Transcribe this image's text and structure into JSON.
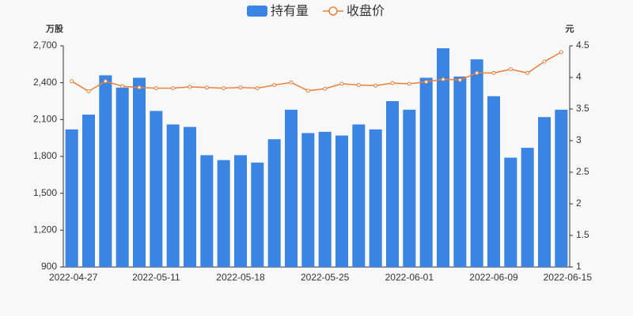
{
  "chart_data": {
    "type": "bar",
    "legend": "top",
    "y_unit": "万股",
    "y2_unit": "元",
    "categories": [
      "2022-04-27",
      null,
      null,
      null,
      null,
      "2022-05-11",
      null,
      null,
      null,
      null,
      "2022-05-18",
      null,
      null,
      null,
      null,
      "2022-05-25",
      null,
      null,
      null,
      null,
      "2022-06-01",
      null,
      null,
      null,
      null,
      "2022-06-09",
      null,
      null,
      null,
      "2022-06-15"
    ],
    "series": [
      {
        "name": "持有量",
        "type": "bar",
        "color": "#3a84e3",
        "values": [
          2020,
          2140,
          2460,
          2360,
          2440,
          2170,
          2060,
          2040,
          1810,
          1770,
          1810,
          1750,
          1940,
          2180,
          1990,
          2000,
          1970,
          2060,
          2020,
          2250,
          2180,
          2440,
          2680,
          2450,
          2590,
          2290,
          1790,
          1870,
          2120,
          2180
        ]
      },
      {
        "name": "收盘价",
        "type": "line",
        "axis": "y2",
        "color": "#e8803a",
        "values": [
          3.94,
          3.78,
          3.94,
          3.86,
          3.84,
          3.83,
          3.83,
          3.85,
          3.84,
          3.83,
          3.84,
          3.83,
          3.88,
          3.92,
          3.79,
          3.82,
          3.9,
          3.88,
          3.87,
          3.91,
          3.9,
          3.93,
          3.97,
          3.96,
          4.07,
          4.07,
          4.13,
          4.07,
          4.25,
          4.4
        ]
      }
    ],
    "ylim": [
      900,
      2700
    ],
    "yticks": [
      {
        "value": 900,
        "label": "900"
      },
      {
        "value": 1200,
        "label": "1,200"
      },
      {
        "value": 1500,
        "label": "1,500"
      },
      {
        "value": 1800,
        "label": "1,800"
      },
      {
        "value": 2100,
        "label": "2,100"
      },
      {
        "value": 2400,
        "label": "2,400"
      },
      {
        "value": 2700,
        "label": "2,700"
      }
    ],
    "y2lim": [
      1,
      4.5
    ],
    "y2ticks": [
      1,
      1.5,
      2,
      2.5,
      3,
      3.5,
      4,
      4.5
    ],
    "grid": false
  }
}
